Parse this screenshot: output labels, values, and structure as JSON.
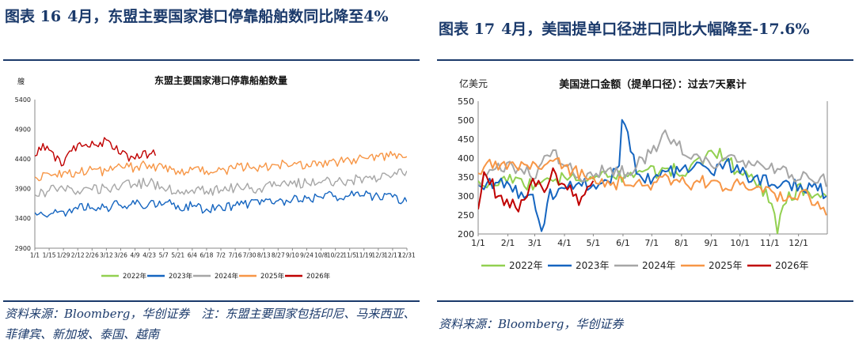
{
  "left": {
    "figure_number": "图表 16",
    "figure_title": "4月，东盟主要国家港口停靠船舶数同比降至4%",
    "source": "资料来源：Bloomberg，华创证券　注：东盟主要国家包括印尼、马来西亚、菲律宾、新加坡、泰国、越南"
  },
  "right": {
    "figure_number": "图表 17",
    "figure_title": "4月，美国提单口径进口同比大幅降至-17.6%",
    "source": "资料来源：Bloomberg，华创证券"
  },
  "chart_data": [
    {
      "type": "line",
      "title": "东盟主要国家港口停靠船舶数量",
      "ylabel": "艘",
      "ylim": [
        2900,
        5400
      ],
      "yticks": [
        2900,
        3400,
        3900,
        4400,
        4900,
        5400
      ],
      "xlim": [
        1,
        365
      ],
      "xticks": [
        {
          "day": 1,
          "label": "1/1"
        },
        {
          "day": 15,
          "label": "1/15"
        },
        {
          "day": 29,
          "label": "1/29"
        },
        {
          "day": 43,
          "label": "2/12"
        },
        {
          "day": 57,
          "label": "2/26"
        },
        {
          "day": 71,
          "label": "3/12"
        },
        {
          "day": 85,
          "label": "3/26"
        },
        {
          "day": 99,
          "label": "4/9"
        },
        {
          "day": 113,
          "label": "4/23"
        },
        {
          "day": 127,
          "label": "5/7"
        },
        {
          "day": 141,
          "label": "5/21"
        },
        {
          "day": 155,
          "label": "6/4"
        },
        {
          "day": 169,
          "label": "6/18"
        },
        {
          "day": 183,
          "label": "7/2"
        },
        {
          "day": 197,
          "label": "7/16"
        },
        {
          "day": 211,
          "label": "7/30"
        },
        {
          "day": 225,
          "label": "8/13"
        },
        {
          "day": 239,
          "label": "8/27"
        },
        {
          "day": 253,
          "label": "9/10"
        },
        {
          "day": 267,
          "label": "9/24"
        },
        {
          "day": 281,
          "label": "10/8"
        },
        {
          "day": 295,
          "label": "10/22"
        },
        {
          "day": 309,
          "label": "11/5"
        },
        {
          "day": 323,
          "label": "11/19"
        },
        {
          "day": 337,
          "label": "12/3"
        },
        {
          "day": 351,
          "label": "12/17"
        },
        {
          "day": 365,
          "label": "12/31"
        }
      ],
      "legend_position": "bottom",
      "grid": false,
      "series": [
        {
          "name": "2022年",
          "color": "#92d050",
          "x": [],
          "y": []
        },
        {
          "name": "2023年",
          "color": "#1565c0",
          "x": [
            1,
            15,
            29,
            43,
            57,
            71,
            85,
            99,
            113,
            127,
            141,
            155,
            169,
            183,
            197,
            211,
            225,
            239,
            253,
            267,
            281,
            295,
            309,
            323,
            337,
            351,
            365
          ],
          "y": [
            3500,
            3460,
            3520,
            3560,
            3580,
            3600,
            3620,
            3640,
            3660,
            3640,
            3620,
            3600,
            3560,
            3600,
            3620,
            3660,
            3680,
            3700,
            3720,
            3740,
            3760,
            3780,
            3790,
            3780,
            3780,
            3760,
            3680
          ]
        },
        {
          "name": "2024年",
          "color": "#a6a6a6",
          "x": [
            1,
            15,
            29,
            43,
            57,
            71,
            85,
            99,
            113,
            127,
            141,
            155,
            169,
            183,
            197,
            211,
            225,
            239,
            253,
            267,
            281,
            295,
            309,
            323,
            337,
            351,
            365
          ],
          "y": [
            3800,
            3870,
            3900,
            3860,
            3880,
            3920,
            3940,
            3980,
            4000,
            3900,
            3880,
            3880,
            3860,
            3880,
            3920,
            3900,
            3920,
            3960,
            3980,
            4000,
            4000,
            4020,
            4040,
            4080,
            4060,
            4120,
            4200
          ]
        },
        {
          "name": "2025年",
          "color": "#f79646",
          "x": [
            1,
            15,
            29,
            43,
            57,
            71,
            85,
            99,
            113,
            127,
            141,
            155,
            169,
            183,
            197,
            211,
            225,
            239,
            253,
            267,
            281,
            295,
            309,
            323,
            337,
            351,
            365
          ],
          "y": [
            4100,
            4150,
            4180,
            4160,
            4220,
            4200,
            4280,
            4260,
            4300,
            4240,
            4200,
            4220,
            4200,
            4220,
            4240,
            4260,
            4280,
            4300,
            4300,
            4320,
            4340,
            4360,
            4380,
            4420,
            4440,
            4460,
            4440
          ]
        },
        {
          "name": "2026年",
          "color": "#c00000",
          "x": [
            1,
            8,
            15,
            22,
            29,
            36,
            43,
            50,
            57,
            64,
            71,
            78,
            85,
            92,
            99,
            106,
            113,
            120
          ],
          "y": [
            4450,
            4600,
            4550,
            4400,
            4300,
            4500,
            4650,
            4600,
            4700,
            4650,
            4720,
            4600,
            4480,
            4450,
            4400,
            4450,
            4480,
            4550
          ]
        }
      ]
    },
    {
      "type": "line",
      "title": "美国进口金额（提单口径）：过去7天累计",
      "ylabel": "亿美元",
      "ylim": [
        200,
        550
      ],
      "yticks": [
        200,
        250,
        300,
        350,
        400,
        450,
        500,
        550
      ],
      "xlim": [
        1,
        365
      ],
      "xticks": [
        {
          "day": 1,
          "label": "1/1"
        },
        {
          "day": 32,
          "label": "2/1"
        },
        {
          "day": 60,
          "label": "3/1"
        },
        {
          "day": 91,
          "label": "4/1"
        },
        {
          "day": 121,
          "label": "5/1"
        },
        {
          "day": 152,
          "label": "6/1"
        },
        {
          "day": 182,
          "label": "7/1"
        },
        {
          "day": 213,
          "label": "8/1"
        },
        {
          "day": 244,
          "label": "9/1"
        },
        {
          "day": 274,
          "label": "10/1"
        },
        {
          "day": 305,
          "label": "11/1"
        },
        {
          "day": 335,
          "label": "12/1"
        }
      ],
      "legend_position": "bottom",
      "grid": false,
      "series": [
        {
          "name": "2022年",
          "color": "#92d050",
          "x": [
            1,
            15,
            32,
            46,
            60,
            75,
            91,
            105,
            121,
            136,
            152,
            167,
            182,
            197,
            213,
            228,
            244,
            259,
            274,
            289,
            305,
            312,
            320,
            335,
            350,
            365
          ],
          "y": [
            340,
            330,
            350,
            345,
            320,
            335,
            350,
            340,
            345,
            350,
            355,
            360,
            365,
            370,
            365,
            380,
            420,
            400,
            360,
            340,
            300,
            210,
            280,
            320,
            300,
            310
          ]
        },
        {
          "name": "2023年",
          "color": "#1565c0",
          "x": [
            1,
            15,
            32,
            46,
            60,
            68,
            75,
            91,
            105,
            121,
            136,
            148,
            152,
            158,
            167,
            182,
            197,
            213,
            228,
            244,
            259,
            274,
            289,
            305,
            320,
            335,
            350,
            365
          ],
          "y": [
            330,
            340,
            320,
            310,
            290,
            210,
            300,
            320,
            340,
            330,
            340,
            380,
            540,
            440,
            360,
            340,
            360,
            370,
            380,
            360,
            390,
            360,
            350,
            340,
            330,
            330,
            320,
            310
          ]
        },
        {
          "name": "2024年",
          "color": "#a6a6a6",
          "x": [
            1,
            15,
            32,
            46,
            60,
            75,
            91,
            105,
            121,
            136,
            152,
            167,
            182,
            197,
            213,
            228,
            244,
            259,
            274,
            289,
            305,
            320,
            335,
            350,
            365
          ],
          "y": [
            330,
            360,
            380,
            370,
            350,
            420,
            380,
            360,
            350,
            370,
            360,
            380,
            420,
            470,
            420,
            400,
            380,
            400,
            390,
            380,
            370,
            360,
            350,
            340,
            340
          ]
        },
        {
          "name": "2025年",
          "color": "#f79646",
          "x": [
            1,
            15,
            32,
            46,
            60,
            75,
            91,
            105,
            121,
            136,
            152,
            167,
            182,
            197,
            213,
            228,
            244,
            259,
            274,
            289,
            305,
            320,
            335,
            350,
            360,
            365
          ],
          "y": [
            360,
            380,
            370,
            390,
            380,
            400,
            380,
            360,
            350,
            340,
            330,
            340,
            330,
            350,
            340,
            330,
            340,
            320,
            330,
            320,
            310,
            300,
            310,
            290,
            260,
            270
          ]
        },
        {
          "name": "2026年",
          "color": "#c00000",
          "x": [
            1,
            8,
            15,
            22,
            32,
            40,
            50,
            60,
            70,
            80,
            91,
            100,
            108,
            114,
            121
          ],
          "y": [
            265,
            380,
            330,
            300,
            280,
            270,
            290,
            340,
            310,
            360,
            330,
            300,
            285,
            300,
            340
          ]
        }
      ]
    }
  ]
}
